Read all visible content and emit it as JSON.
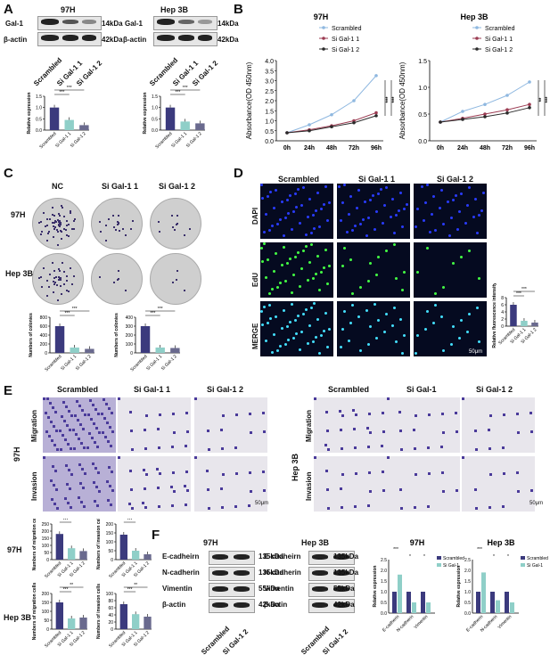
{
  "panels": {
    "A": {
      "letter": "A",
      "left": {
        "title": "97H",
        "rows": [
          {
            "name": "Gal-1",
            "kda": "14kDa"
          },
          {
            "name": "β-actin",
            "kda": "42kDa"
          }
        ],
        "lanes": [
          "Scrambled",
          "Si Gal-1 1",
          "Si Gal-1 2"
        ],
        "chart": {
          "ylabel": "Relative expression",
          "yticks": [
            "1.5",
            "1.0",
            "0.5",
            "0.0"
          ],
          "categories": [
            "Scrambled",
            "Si Gal-1 1",
            "Si Gal-1 2"
          ],
          "values": [
            1.0,
            0.45,
            0.22
          ],
          "sig": [
            "***",
            "***"
          ],
          "colors": [
            "#3b3a7d",
            "#8fcfc8",
            "#6a6a8e"
          ]
        }
      },
      "right": {
        "title": "Hep 3B",
        "rows": [
          {
            "name": "Gal-1",
            "kda": "14kDa"
          },
          {
            "name": "β-actin",
            "kda": "42kDa"
          }
        ],
        "lanes": [
          "Scrambled",
          "Si Gal-1 1",
          "Si Gal-1 2"
        ],
        "chart": {
          "ylabel": "Relative expression",
          "yticks": [
            "1.5",
            "1.0",
            "0.5",
            "0.0"
          ],
          "categories": [
            "Scrambled",
            "Si Gal-1 1",
            "Si Gal-1 2"
          ],
          "values": [
            1.0,
            0.38,
            0.3
          ],
          "sig": [
            "***",
            "***"
          ],
          "colors": [
            "#3b3a7d",
            "#8fcfc8",
            "#6a6a8e"
          ]
        }
      }
    },
    "B": {
      "letter": "B",
      "legend": [
        "Scrambled",
        "Si Gal-1 1",
        "Si Gal-1 2"
      ],
      "colors": [
        "#8fb8e0",
        "#9b3b52",
        "#2a2a2a"
      ],
      "charts": [
        {
          "title": "97H",
          "ylabel": "Absorbance(OD 450nm)",
          "x": [
            "0h",
            "24h",
            "48h",
            "72h",
            "96h"
          ],
          "yticks": [
            "0.0",
            "0.5",
            "1.0",
            "1.5",
            "2.0",
            "2.5",
            "3.0",
            "3.5",
            "4.0"
          ],
          "ylim": [
            0,
            4
          ],
          "series": [
            {
              "name": "Scrambled",
              "values": [
                0.4,
                0.8,
                1.3,
                2.0,
                3.25
              ]
            },
            {
              "name": "Si Gal-1 1",
              "values": [
                0.4,
                0.55,
                0.75,
                1.0,
                1.4
              ]
            },
            {
              "name": "Si Gal-1 2",
              "values": [
                0.4,
                0.5,
                0.7,
                0.9,
                1.25
              ]
            }
          ],
          "sig": [
            "***",
            "***"
          ]
        },
        {
          "title": "Hep 3B",
          "ylabel": "Absorbance(OD 450nm)",
          "x": [
            "0h",
            "24h",
            "48h",
            "72h",
            "96h"
          ],
          "yticks": [
            "0.0",
            "0.5",
            "1.0",
            "1.5"
          ],
          "ylim": [
            0,
            1.5
          ],
          "series": [
            {
              "name": "Scrambled",
              "values": [
                0.35,
                0.55,
                0.68,
                0.85,
                1.1
              ]
            },
            {
              "name": "Si Gal-1 1",
              "values": [
                0.35,
                0.42,
                0.5,
                0.58,
                0.68
              ]
            },
            {
              "name": "Si Gal-1 2",
              "values": [
                0.35,
                0.4,
                0.45,
                0.52,
                0.62
              ]
            }
          ],
          "sig": [
            "**",
            "***"
          ]
        }
      ]
    },
    "C": {
      "letter": "C",
      "columns": [
        "NC",
        "Si Gal-1 1",
        "Si Gal-1 2"
      ],
      "rows": [
        "97H",
        "Hep 3B"
      ],
      "charts": [
        {
          "ylabel": "Numbers of colonies",
          "yticks": [
            "800",
            "600",
            "400",
            "200",
            "0"
          ],
          "categories": [
            "Scrambled",
            "Si Gal-1 1",
            "Si Gal-1 2"
          ],
          "values": [
            600,
            120,
            90
          ],
          "ylim": [
            0,
            800
          ],
          "sig": [
            "***",
            "***"
          ]
        },
        {
          "ylabel": "Numbers of colonies",
          "yticks": [
            "400",
            "300",
            "200",
            "100",
            "0"
          ],
          "categories": [
            "Scrambled",
            "Si Gal-1 1",
            "Si Gal-1 2"
          ],
          "values": [
            300,
            60,
            55
          ],
          "ylim": [
            0,
            400
          ],
          "sig": [
            "***",
            "***"
          ]
        }
      ]
    },
    "D": {
      "letter": "D",
      "columns": [
        "Scrambled",
        "Si Gal-1 1",
        "Si Gal-1 2"
      ],
      "rows": [
        "DAPI",
        "EdU",
        "MERGE"
      ],
      "scale": "50μm",
      "chart": {
        "ylabel": "Relative fluorescence intensity(%)",
        "categories": [
          "Scrambled",
          "Si Gal-1 1",
          "Si Gal-1 2"
        ],
        "values": [
          6,
          1.5,
          1.0
        ],
        "sig": [
          "***",
          "***"
        ]
      }
    },
    "E": {
      "letter": "E",
      "left": {
        "columns": [
          "Scrambled",
          "Si Gal-1 1",
          "Si Gal-1 2"
        ],
        "cell": "97H",
        "rows": [
          "Migration",
          "Invasion"
        ],
        "scale": "50μm"
      },
      "right": {
        "columns": [
          "Scrambled",
          "Si Gal-1",
          "Si Gal-1 2"
        ],
        "cell": "Hep 3B",
        "rows": [
          "Migration",
          "Invasion"
        ],
        "scale": "50μm"
      },
      "charts": [
        {
          "group": "97H",
          "ylabel": "Numbers of migration cells",
          "yticks": [
            "250",
            "200",
            "150",
            "100",
            "50",
            "0"
          ],
          "ylim": [
            0,
            250
          ],
          "categories": [
            "Scrambled",
            "Si Gal-1 1",
            "Si Gal-1 2"
          ],
          "values": [
            180,
            80,
            60
          ],
          "sig": [
            "***",
            "***"
          ]
        },
        {
          "group": "97H",
          "ylabel": "Numbers of invasion cells",
          "yticks": [
            "200",
            "150",
            "100",
            "50",
            "0"
          ],
          "ylim": [
            0,
            200
          ],
          "categories": [
            "Scrambled",
            "Si Gal-1 1",
            "Si Gal-1 2"
          ],
          "values": [
            140,
            50,
            30
          ],
          "sig": [
            "***",
            "***"
          ]
        },
        {
          "group": "Hep 3B",
          "ylabel": "Numbers of migration cells",
          "yticks": [
            "200",
            "150",
            "100",
            "50",
            "0"
          ],
          "ylim": [
            0,
            200
          ],
          "categories": [
            "Scrambled",
            "Si Gal-1 1",
            "Si Gal-1 2"
          ],
          "values": [
            150,
            60,
            65
          ],
          "sig": [
            "***",
            "**"
          ]
        },
        {
          "group": "Hep 3B",
          "ylabel": "Numbers of invasion cells",
          "yticks": [
            "100",
            "80",
            "60",
            "40",
            "20",
            "0"
          ],
          "ylim": [
            0,
            100
          ],
          "categories": [
            "Scrambled",
            "Si Gal-1 1",
            "Si Gal-1 2"
          ],
          "values": [
            70,
            42,
            35
          ],
          "sig": [
            "***",
            "**"
          ]
        }
      ]
    },
    "F": {
      "letter": "F",
      "blots": [
        {
          "title": "97H",
          "rows": [
            {
              "name": "E-cadheirn",
              "kda": "135kDa"
            },
            {
              "name": "N-cadherin",
              "kda": "135kDa"
            },
            {
              "name": "Vimentin",
              "kda": "55kDa"
            },
            {
              "name": "β-actin",
              "kda": "42kDa"
            }
          ],
          "lanes": [
            "Scrambled",
            "Si Gal-1 2"
          ]
        },
        {
          "title": "Hep 3B",
          "rows": [
            {
              "name": "E-cadheirn",
              "kda": "135kDa"
            },
            {
              "name": "N-cadherin",
              "kda": "135kDa"
            },
            {
              "name": "Vimentin",
              "kda": "55kDa"
            },
            {
              "name": "β-actin",
              "kda": "42kDa"
            }
          ],
          "lanes": [
            "Scrambled",
            "Si Gal-1 2"
          ]
        }
      ],
      "charts": [
        {
          "title": "97H",
          "ylabel": "Relative expression",
          "yticks": [
            "2.5",
            "2.0",
            "1.5",
            "1.0",
            "0.5",
            "0.0"
          ],
          "ylim": [
            0,
            2.5
          ],
          "categories": [
            "E-cadherin",
            "N-cadherin",
            "Vimentin"
          ],
          "series": [
            {
              "name": "Scrambled",
              "values": [
                1.0,
                1.0,
                1.0
              ]
            },
            {
              "name": "Si Gal-1",
              "values": [
                1.8,
                0.5,
                0.5
              ]
            }
          ],
          "sig": [
            "***",
            "*",
            "*"
          ]
        },
        {
          "title": "Hep 3B",
          "ylabel": "Relative expression",
          "yticks": [
            "2.5",
            "2.0",
            "1.5",
            "1.0",
            "0.5",
            "0.0"
          ],
          "ylim": [
            0,
            2.5
          ],
          "categories": [
            "E-cadherin",
            "N-cadherin",
            "Vimentin"
          ],
          "series": [
            {
              "name": "Scrambled",
              "values": [
                1.0,
                1.0,
                1.0
              ]
            },
            {
              "name": "Si Gal-1",
              "values": [
                1.9,
                0.6,
                0.5
              ]
            }
          ],
          "sig": [
            "***",
            "*",
            "*"
          ]
        }
      ],
      "colors": [
        "#3b3a7d",
        "#8fcfc8"
      ]
    }
  }
}
